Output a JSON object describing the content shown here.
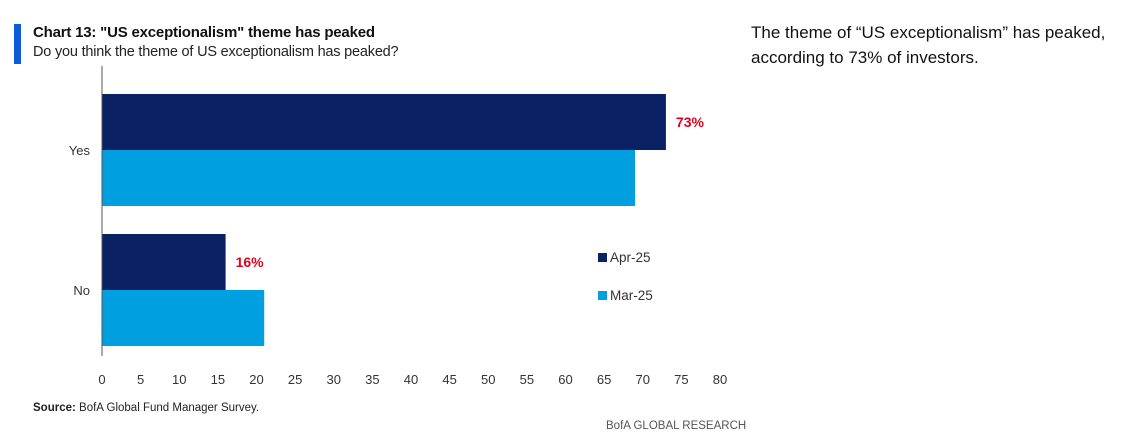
{
  "header": {
    "title": "Chart 13: \"US exceptionalism\" theme has peaked",
    "subtitle": "Do you think the theme of US exceptionalism has peaked?"
  },
  "commentary": "The theme of “US exceptionalism” has peaked, according to 73% of investors.",
  "source": {
    "label": "Source:",
    "text": " BofA Global Fund Manager Survey."
  },
  "footer": "BofA GLOBAL RESEARCH",
  "colors": {
    "accent": "#0b5cd5",
    "apr": "#0a2264",
    "mar": "#009fdf",
    "data_label": "#e0001b"
  },
  "chart_data": {
    "type": "bar",
    "orientation": "horizontal",
    "title": "Chart 13: \"US exceptionalism\" theme has peaked",
    "subtitle": "Do you think the theme of US exceptionalism has peaked?",
    "categories": [
      "Yes",
      "No"
    ],
    "series": [
      {
        "name": "Apr-25",
        "values": [
          73,
          16
        ],
        "data_labels": [
          "73%",
          "16%"
        ]
      },
      {
        "name": "Mar-25",
        "values": [
          69,
          21
        ]
      }
    ],
    "xlim": [
      0,
      80
    ],
    "x_ticks": [
      0,
      5,
      10,
      15,
      20,
      25,
      30,
      35,
      40,
      45,
      50,
      55,
      60,
      65,
      70,
      75,
      80
    ],
    "grid": false,
    "legend": "right"
  }
}
